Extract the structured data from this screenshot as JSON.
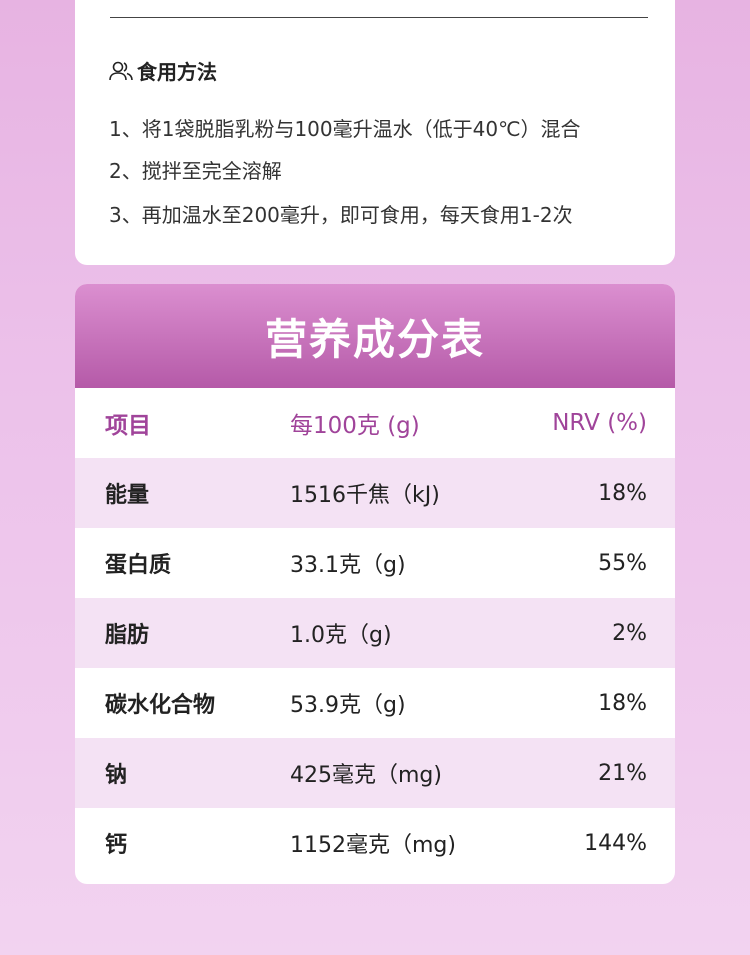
{
  "usage": {
    "title": "食用方法",
    "icon": "people-icon",
    "steps": [
      "1、将1袋脱脂乳粉与100毫升温水（低于40℃）混合",
      "2、搅拌至完全溶解",
      "3、再加温水至200毫升，即可食用，每天食用1-2次"
    ]
  },
  "nutrition": {
    "title": "营养成分表",
    "headers": [
      "项目",
      "每100克 (g)",
      "NRV (%)"
    ],
    "rows": [
      [
        "能量",
        "1516千焦（kJ)",
        "18%"
      ],
      [
        "蛋白质",
        "33.1克（g)",
        "55%"
      ],
      [
        "脂肪",
        "1.0克（g)",
        "2%"
      ],
      [
        "碳水化合物",
        "53.9克（g)",
        "18%"
      ],
      [
        "钠",
        "425毫克（mg)",
        "21%"
      ],
      [
        "钙",
        "1152毫克（mg)",
        "144%"
      ]
    ]
  },
  "colors": {
    "accent": "#a0449a",
    "banner": "#c46cba"
  }
}
